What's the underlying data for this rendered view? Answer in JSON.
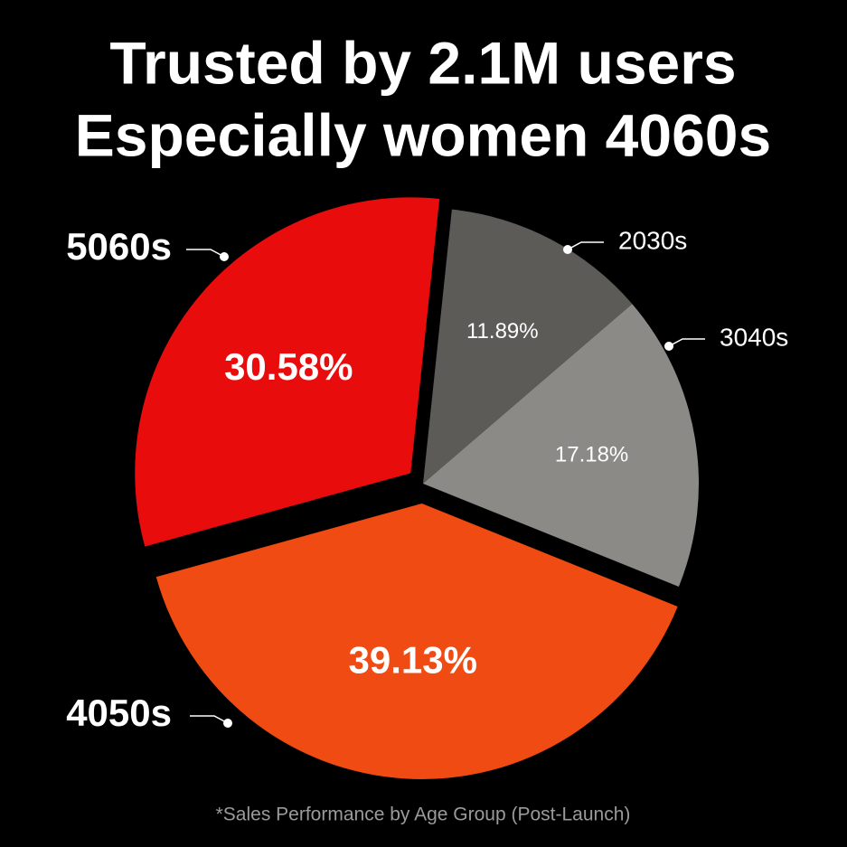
{
  "chart_data": {
    "type": "pie",
    "title": [
      "Trusted by 2.1M users",
      "Especially women 4060s"
    ],
    "categories": [
      "2030s",
      "3040s",
      "4050s",
      "5060s"
    ],
    "values": [
      11.89,
      17.18,
      39.13,
      30.58
    ],
    "value_labels": [
      "11.89%",
      "17.18%",
      "39.13%",
      "30.58%"
    ],
    "colors": [
      "#5d5b58",
      "#8b8a86",
      "#f04b12",
      "#e80c0c"
    ],
    "note": "*Sales Performance by Age Group (Post-Launch)"
  }
}
